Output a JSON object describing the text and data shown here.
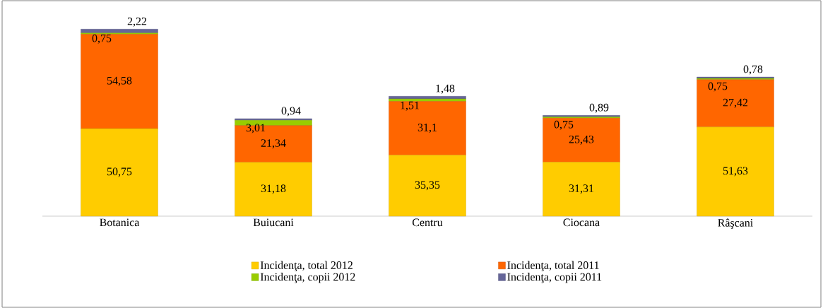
{
  "chart_data": {
    "type": "bar",
    "stacked": true,
    "legend": "bottom",
    "categories": [
      "Botanica",
      "Buiucani",
      "Centru",
      "Ciocana",
      "Râşcani"
    ],
    "series": [
      {
        "name": "Incidenţa, total 2012",
        "color": "#ffcc00",
        "values": [
          50.75,
          31.18,
          35.35,
          31.31,
          51.63
        ],
        "value_labels": [
          "50,75",
          "31,18",
          "35,35",
          "31,31",
          "51,63"
        ]
      },
      {
        "name": "Incidenţa, total 2011",
        "color": "#ff6600",
        "values": [
          54.58,
          21.34,
          31.1,
          25.43,
          27.42
        ],
        "value_labels": [
          "54,58",
          "21,34",
          "31,1",
          "25,43",
          "27,42"
        ]
      },
      {
        "name": "Incidenţa, copii 2012",
        "color": "#99cc00",
        "values": [
          0.75,
          3.01,
          1.51,
          0.75,
          0.75
        ],
        "value_labels": [
          "0,75",
          "3,01",
          "1,51",
          "0,75",
          "0,75"
        ]
      },
      {
        "name": "Incidenţa, copii 2011",
        "color": "#666699",
        "values": [
          2.22,
          0.94,
          1.48,
          0.89,
          0.78
        ],
        "value_labels": [
          "2,22",
          "0,94",
          "1,48",
          "0,89",
          "0,78"
        ]
      }
    ]
  }
}
